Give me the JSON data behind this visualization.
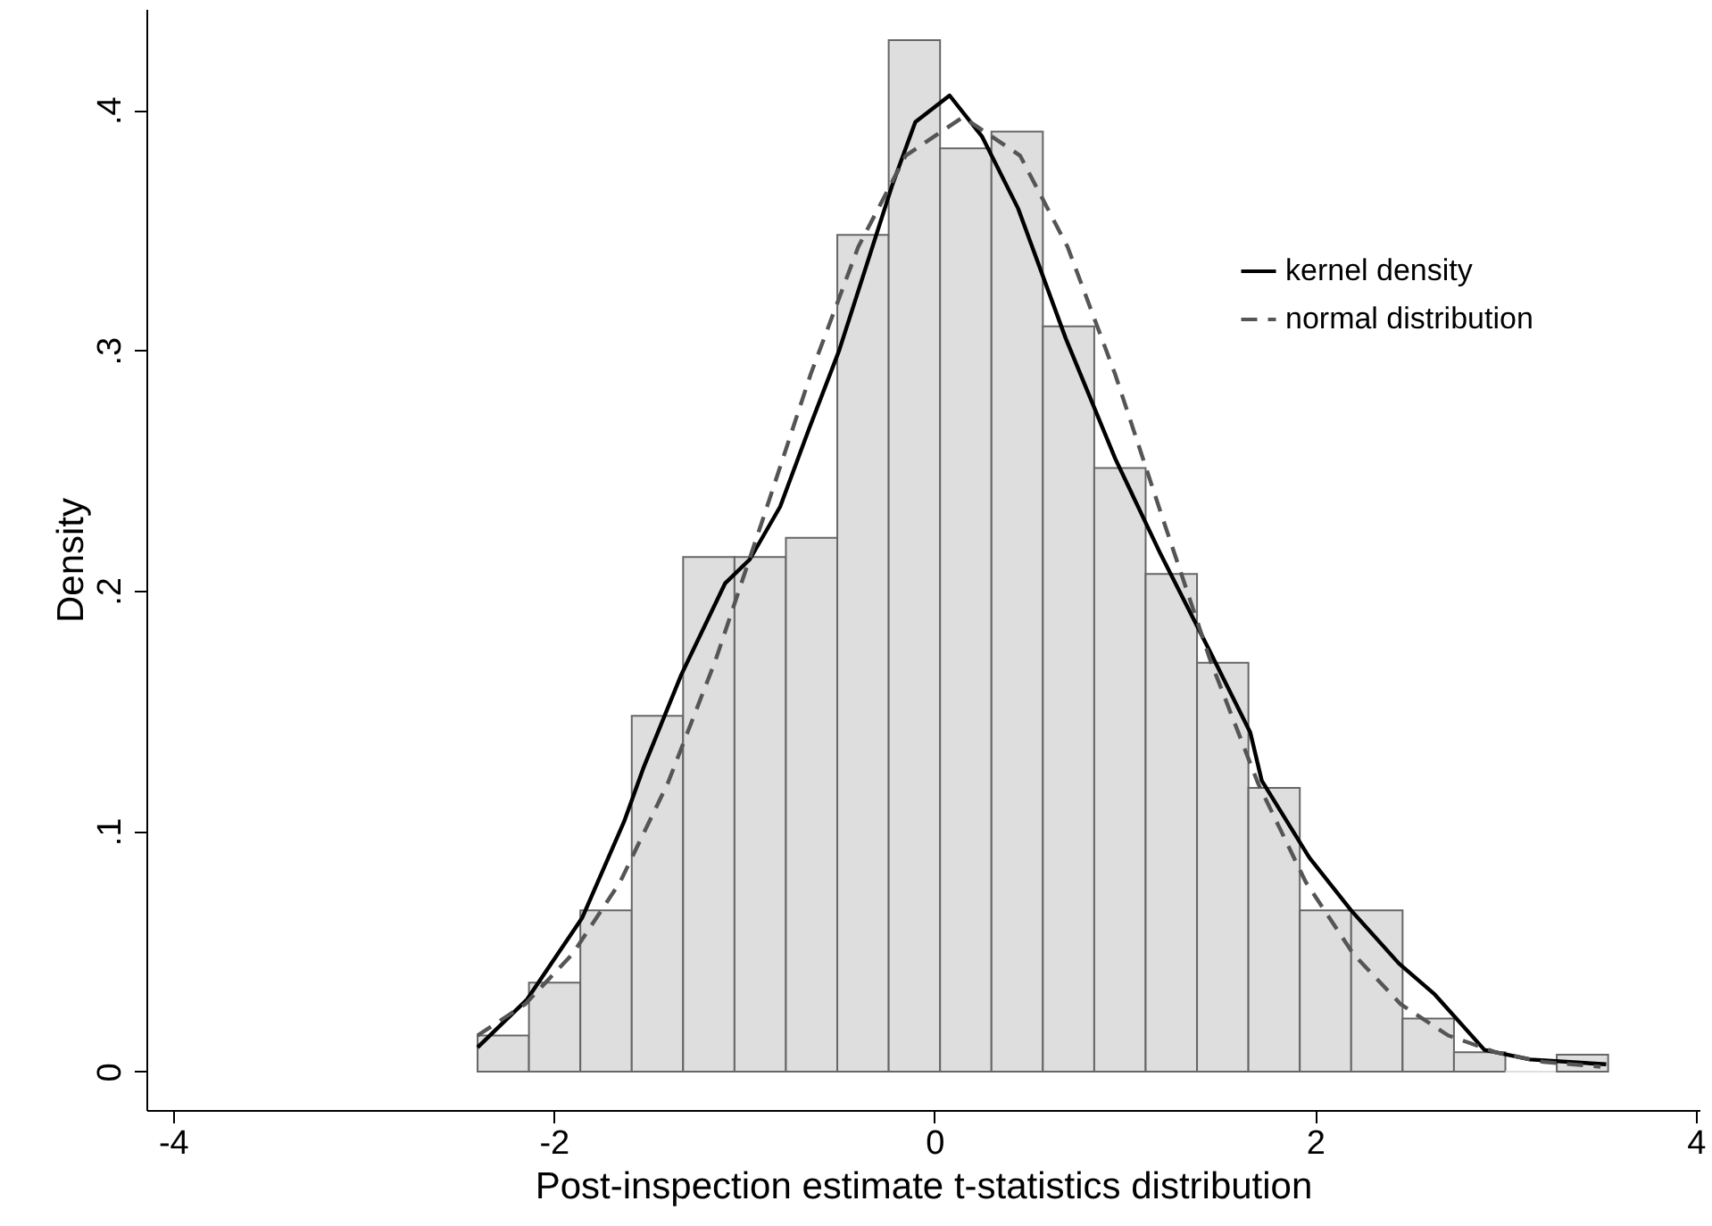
{
  "chart_data": {
    "type": "histogram",
    "xlabel": "Post-inspection estimate t-statistics distribution",
    "ylabel": "Density",
    "bins": [
      -2.4,
      -2.13,
      -1.86,
      -1.59,
      -1.32,
      -1.05,
      -0.78,
      -0.51,
      -0.24,
      0.03,
      0.3,
      0.57,
      0.84,
      1.11,
      1.38,
      1.65,
      1.92,
      2.19,
      2.46,
      2.73,
      3.0,
      3.27,
      3.54
    ],
    "values": [
      0.015,
      0.037,
      0.067,
      0.148,
      0.214,
      0.214,
      0.222,
      0.348,
      0.429,
      0.384,
      0.391,
      0.31,
      0.251,
      0.207,
      0.17,
      0.118,
      0.067,
      0.067,
      0.022,
      0.008,
      0,
      0.007
    ],
    "color": "#dedede",
    "series": [
      {
        "name": "kernel density",
        "type": "line",
        "color": "#000000",
        "line_style": "solid",
        "x": [
          -2.4,
          -2.14,
          -1.85,
          -1.63,
          -1.53,
          -1.33,
          -1.1,
          -0.97,
          -0.81,
          -0.66,
          -0.5,
          -0.22,
          -0.1,
          0.08,
          0.25,
          0.44,
          0.69,
          0.95,
          1.19,
          1.44,
          1.66,
          1.72,
          1.97,
          2.19,
          2.44,
          2.63,
          2.89,
          3.13,
          3.53
        ],
        "values": [
          0.01,
          0.03,
          0.064,
          0.104,
          0.126,
          0.165,
          0.203,
          0.213,
          0.235,
          0.267,
          0.3,
          0.369,
          0.395,
          0.406,
          0.389,
          0.359,
          0.305,
          0.255,
          0.215,
          0.176,
          0.141,
          0.121,
          0.089,
          0.067,
          0.045,
          0.032,
          0.009,
          0.005,
          0.003
        ]
      },
      {
        "name": "normal distribution",
        "type": "line",
        "color": "#555555",
        "line_style": "dashed",
        "x": [
          -2.4,
          -2.15,
          -1.9,
          -1.65,
          -1.4,
          -1.15,
          -0.9,
          -0.65,
          -0.4,
          -0.15,
          0.15,
          0.45,
          0.7,
          0.95,
          1.2,
          1.45,
          1.7,
          1.95,
          2.2,
          2.45,
          2.7,
          2.95,
          3.2,
          3.5
        ],
        "values": [
          0.015,
          0.028,
          0.049,
          0.079,
          0.12,
          0.171,
          0.23,
          0.29,
          0.343,
          0.381,
          0.397,
          0.381,
          0.343,
          0.29,
          0.23,
          0.171,
          0.12,
          0.079,
          0.049,
          0.028,
          0.015,
          0.008,
          0.004,
          0.002
        ]
      }
    ],
    "xlim": [
      -4.14,
      4.02
    ],
    "xticks": [
      -4,
      -2,
      0,
      2,
      4
    ],
    "ylim": [
      -0.016,
      0.442
    ],
    "yticks": [
      {
        "value": 0,
        "label": "0"
      },
      {
        "value": 0.1,
        "label": ".1"
      },
      {
        "value": 0.2,
        "label": ".2"
      },
      {
        "value": 0.3,
        "label": ".3"
      },
      {
        "value": 0.4,
        "label": ".4"
      }
    ],
    "grid": false,
    "legend": "top right"
  }
}
